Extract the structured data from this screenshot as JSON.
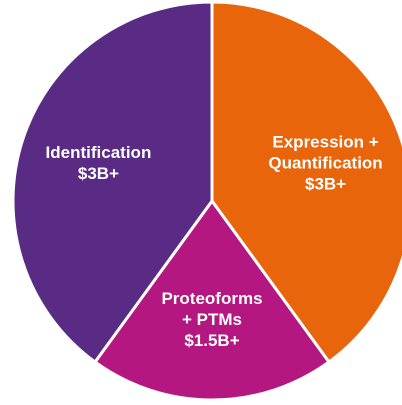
{
  "chart_data": {
    "type": "pie",
    "categories": [
      [
        "Expression +",
        "Quantification"
      ],
      [
        "Proteoforms",
        "+ PTMs"
      ],
      [
        "Identification"
      ]
    ],
    "values": [
      3,
      1.5,
      3
    ],
    "value_labels": [
      "$3B+",
      "$1.5B+",
      "$3B+"
    ],
    "colors": [
      "#e8650c",
      "#b4177f",
      "#5a2b84"
    ]
  }
}
